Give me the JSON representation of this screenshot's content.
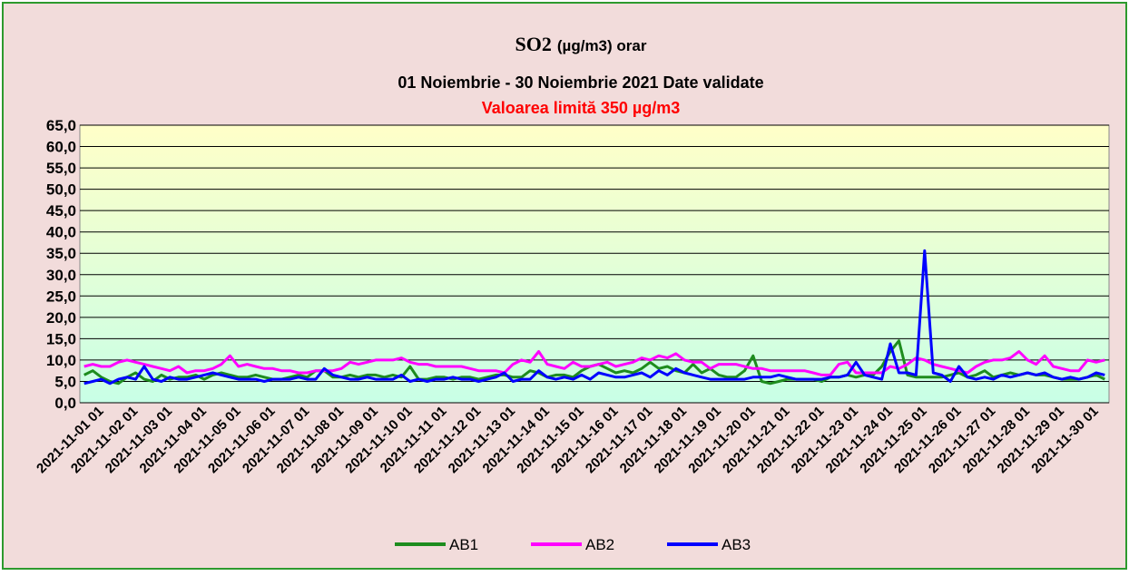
{
  "chart_data": {
    "type": "line",
    "title": "SO2",
    "title_unit": "(µg/m3) orar",
    "subtitle": "01 Noiembrie  -  30 Noiembrie   2021 Date validate",
    "annotation": "Valoarea limită 350 µg/m3",
    "categories": [
      "2021-11-01 01",
      null,
      null,
      null,
      "2021-11-02 01",
      null,
      null,
      null,
      "2021-11-03 01",
      null,
      null,
      null,
      "2021-11-04 01",
      null,
      null,
      null,
      "2021-11-05 01",
      null,
      null,
      null,
      "2021-11-06 01",
      null,
      null,
      null,
      "2021-11-07 01",
      null,
      null,
      null,
      "2021-11-08 01",
      null,
      null,
      null,
      "2021-11-09 01",
      null,
      null,
      null,
      "2021-11-10 01",
      null,
      null,
      null,
      "2021-11-11 01",
      null,
      null,
      null,
      "2021-11-12 01",
      null,
      null,
      null,
      "2021-11-13 01",
      null,
      null,
      null,
      "2021-11-14 01",
      null,
      null,
      null,
      "2021-11-15 01",
      null,
      null,
      null,
      "2021-11-16 01",
      null,
      null,
      null,
      "2021-11-17 01",
      null,
      null,
      null,
      "2021-11-18 01",
      null,
      null,
      null,
      "2021-11-19 01",
      null,
      null,
      null,
      "2021-11-20 01",
      null,
      null,
      null,
      "2021-11-21 01",
      null,
      null,
      null,
      "2021-11-22 01",
      null,
      null,
      null,
      "2021-11-23 01",
      null,
      null,
      null,
      "2021-11-24 01",
      null,
      null,
      null,
      "2021-11-25 01",
      null,
      null,
      null,
      "2021-11-26 01",
      null,
      null,
      null,
      "2021-11-27 01",
      null,
      null,
      null,
      "2021-11-28 01",
      null,
      null,
      null,
      "2021-11-29 01",
      null,
      null,
      null,
      "2021-11-30 01",
      null,
      null,
      null
    ],
    "series": [
      {
        "name": "AB1",
        "color": "#1e8c1e",
        "values": [
          6.5,
          7.5,
          6.0,
          5.0,
          4.5,
          6.0,
          7.0,
          5.5,
          5.0,
          6.5,
          5.5,
          6.0,
          6.0,
          6.5,
          5.5,
          6.5,
          7.0,
          6.5,
          6.0,
          6.0,
          6.5,
          6.0,
          5.5,
          5.5,
          6.0,
          6.5,
          6.0,
          7.5,
          7.5,
          6.0,
          6.0,
          6.5,
          6.0,
          6.5,
          6.5,
          6.0,
          6.5,
          6.0,
          8.5,
          5.5,
          5.5,
          6.0,
          6.0,
          5.5,
          6.0,
          6.0,
          5.5,
          6.0,
          6.5,
          6.5,
          6.0,
          6.0,
          7.5,
          7.0,
          6.0,
          6.5,
          6.5,
          6.0,
          7.5,
          8.5,
          9.0,
          8.0,
          7.0,
          7.5,
          7.0,
          8.0,
          9.5,
          8.0,
          8.5,
          7.5,
          7.0,
          9.0,
          7.0,
          8.0,
          6.5,
          6.0,
          6.0,
          7.5,
          11.0,
          5.0,
          4.5,
          5.0,
          5.5,
          5.5,
          5.5,
          5.5,
          5.0,
          6.0,
          6.0,
          6.5,
          6.0,
          6.5,
          6.5,
          8.5,
          12.0,
          14.5,
          6.5,
          6.0,
          6.0,
          6.0,
          6.0,
          6.5,
          7.0,
          6.0,
          6.5,
          7.5,
          6.0,
          6.5,
          7.0,
          6.5,
          7.0,
          6.5,
          6.5,
          6.0,
          5.5,
          5.5,
          5.5,
          6.0,
          6.5,
          5.5
        ]
      },
      {
        "name": "AB2",
        "color": "#ff00ff",
        "values": [
          8.5,
          9.0,
          8.5,
          8.5,
          9.5,
          10.0,
          9.5,
          9.0,
          8.5,
          8.0,
          7.5,
          8.5,
          7.0,
          7.5,
          7.5,
          8.0,
          9.0,
          11.0,
          8.5,
          9.0,
          8.5,
          8.0,
          8.0,
          7.5,
          7.5,
          7.0,
          7.0,
          7.5,
          7.5,
          7.5,
          8.0,
          9.5,
          9.0,
          9.5,
          10.0,
          10.0,
          10.0,
          10.5,
          9.5,
          9.0,
          9.0,
          8.5,
          8.5,
          8.5,
          8.5,
          8.0,
          7.5,
          7.5,
          7.5,
          7.0,
          9.0,
          10.0,
          9.5,
          12.0,
          9.0,
          8.5,
          8.0,
          9.5,
          8.5,
          8.5,
          9.0,
          9.5,
          8.5,
          9.0,
          9.5,
          10.5,
          10.0,
          11.0,
          10.5,
          11.5,
          10.0,
          9.5,
          9.5,
          8.0,
          9.0,
          9.0,
          9.0,
          8.5,
          8.0,
          8.0,
          7.5,
          7.5,
          7.5,
          7.5,
          7.5,
          7.0,
          6.5,
          6.5,
          9.0,
          9.5,
          7.0,
          7.0,
          7.0,
          7.0,
          8.5,
          8.0,
          9.0,
          10.5,
          10.0,
          9.0,
          8.5,
          8.0,
          7.5,
          7.0,
          8.5,
          9.5,
          10.0,
          10.0,
          10.5,
          12.0,
          10.0,
          9.0,
          11.0,
          8.5,
          8.0,
          7.5,
          7.5,
          10.0,
          9.5,
          10.0
        ]
      },
      {
        "name": "AB3",
        "color": "#0000ff",
        "values": [
          4.5,
          5.0,
          5.5,
          4.5,
          5.5,
          6.0,
          5.5,
          8.5,
          5.5,
          5.0,
          6.0,
          5.5,
          5.5,
          6.0,
          6.5,
          7.0,
          6.5,
          6.0,
          5.5,
          5.5,
          5.5,
          5.0,
          5.5,
          5.5,
          5.5,
          6.0,
          5.5,
          5.5,
          8.0,
          6.5,
          6.0,
          5.5,
          5.5,
          6.0,
          5.5,
          5.5,
          5.5,
          6.5,
          5.0,
          5.5,
          5.0,
          5.5,
          5.5,
          6.0,
          5.5,
          5.5,
          5.0,
          5.5,
          6.0,
          7.0,
          5.0,
          5.5,
          5.5,
          7.5,
          6.0,
          5.5,
          6.0,
          5.5,
          6.5,
          5.5,
          7.0,
          6.5,
          6.0,
          6.0,
          6.5,
          7.0,
          6.0,
          7.5,
          6.5,
          8.0,
          7.0,
          6.5,
          6.0,
          5.5,
          5.5,
          5.5,
          5.5,
          5.5,
          6.0,
          6.0,
          6.0,
          6.5,
          6.0,
          5.5,
          5.5,
          5.5,
          5.5,
          6.0,
          6.0,
          6.5,
          9.5,
          6.5,
          6.0,
          5.5,
          13.8,
          7.0,
          7.0,
          6.5,
          35.6,
          7.0,
          6.5,
          5.0,
          8.5,
          6.0,
          5.5,
          6.0,
          5.5,
          6.5,
          6.0,
          6.5,
          7.0,
          6.5,
          7.0,
          6.0,
          5.5,
          6.0,
          5.5,
          6.0,
          7.0,
          6.5
        ]
      }
    ],
    "ylim": [
      0,
      65
    ],
    "yticks": [
      {
        "value": 0,
        "label": "0,0"
      },
      {
        "value": 5,
        "label": "5,0"
      },
      {
        "value": 10,
        "label": "10,0"
      },
      {
        "value": 15,
        "label": "15,0"
      },
      {
        "value": 20,
        "label": "20,0"
      },
      {
        "value": 25,
        "label": "25,0"
      },
      {
        "value": 30,
        "label": "30,0"
      },
      {
        "value": 35,
        "label": "35,0"
      },
      {
        "value": 40,
        "label": "40,0"
      },
      {
        "value": 45,
        "label": "45,0"
      },
      {
        "value": 50,
        "label": "50,0"
      },
      {
        "value": 55,
        "label": "55,0"
      },
      {
        "value": 60,
        "label": "60,0"
      },
      {
        "value": 65,
        "label": "65,0"
      }
    ],
    "grid": true,
    "legend": "bottom"
  }
}
